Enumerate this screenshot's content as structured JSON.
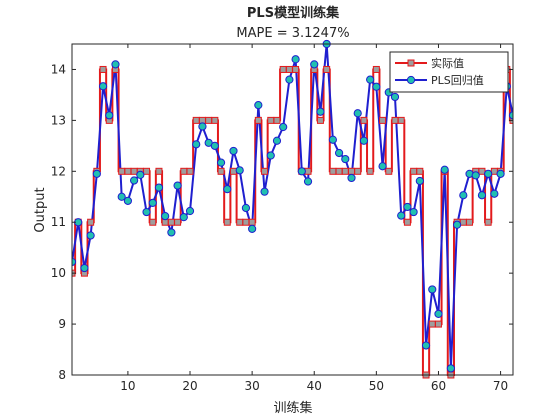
{
  "chart_data": {
    "type": "line",
    "title": "PLS模型训练集",
    "subtitle": "MAPE = 3.1247%",
    "xlabel": "训练集",
    "ylabel": "Output",
    "xlim": [
      1,
      72
    ],
    "ylim": [
      8,
      14.5
    ],
    "xticks": [
      10,
      20,
      30,
      40,
      50,
      60,
      70
    ],
    "yticks": [
      8,
      9,
      10,
      11,
      12,
      13,
      14
    ],
    "grid": false,
    "legend_position": "top-right",
    "x": [
      1,
      2,
      3,
      4,
      5,
      6,
      7,
      8,
      9,
      10,
      11,
      12,
      13,
      14,
      15,
      16,
      17,
      18,
      19,
      20,
      21,
      22,
      23,
      24,
      25,
      26,
      27,
      28,
      29,
      30,
      31,
      32,
      33,
      34,
      35,
      36,
      37,
      38,
      39,
      40,
      41,
      42,
      43,
      44,
      45,
      46,
      47,
      48,
      49,
      50,
      51,
      52,
      53,
      54,
      55,
      56,
      57,
      58,
      59,
      60,
      61,
      62,
      63,
      64,
      65,
      66,
      67,
      68,
      69,
      70,
      71,
      72
    ],
    "series": [
      {
        "name": "实际值",
        "color": "#e31a1c",
        "marker": "square",
        "marker_color": "#9e9e9e",
        "values": [
          10,
          11,
          10,
          11,
          12,
          14,
          13,
          14,
          12,
          12,
          12,
          12,
          12,
          11,
          12,
          11,
          11,
          11,
          12,
          12,
          13,
          13,
          13,
          13,
          12,
          11,
          12,
          11,
          11,
          11,
          13,
          12,
          13,
          13,
          14,
          14,
          14,
          12,
          12,
          14,
          13,
          14,
          12,
          12,
          12,
          12,
          12,
          13,
          12,
          14,
          13,
          12,
          13,
          13,
          11,
          12,
          12,
          8,
          9,
          9,
          12,
          8,
          11,
          11,
          11,
          12,
          12,
          11,
          12,
          12,
          14,
          13
        ]
      },
      {
        "name": "PLS回归值",
        "color": "#1f1fcf",
        "marker": "circle",
        "marker_color": "#21c0b0",
        "values": [
          10.22,
          11.0,
          10.1,
          10.74,
          11.95,
          13.67,
          13.1,
          14.1,
          11.5,
          11.42,
          11.82,
          11.93,
          11.2,
          11.38,
          11.68,
          11.12,
          10.8,
          11.72,
          11.1,
          11.22,
          12.53,
          12.88,
          12.56,
          12.5,
          12.17,
          11.65,
          12.4,
          12.02,
          11.28,
          10.87,
          13.3,
          11.6,
          12.31,
          12.6,
          12.87,
          13.8,
          14.2,
          12.0,
          11.8,
          14.1,
          13.17,
          14.5,
          12.62,
          12.36,
          12.24,
          11.87,
          13.14,
          12.6,
          13.8,
          13.66,
          12.1,
          13.55,
          13.46,
          11.13,
          11.3,
          11.2,
          11.81,
          8.58,
          9.68,
          9.2,
          12.03,
          8.13,
          10.95,
          11.53,
          11.95,
          11.92,
          11.53,
          11.95,
          11.56,
          11.95,
          13.67,
          13.1
        ]
      }
    ]
  }
}
